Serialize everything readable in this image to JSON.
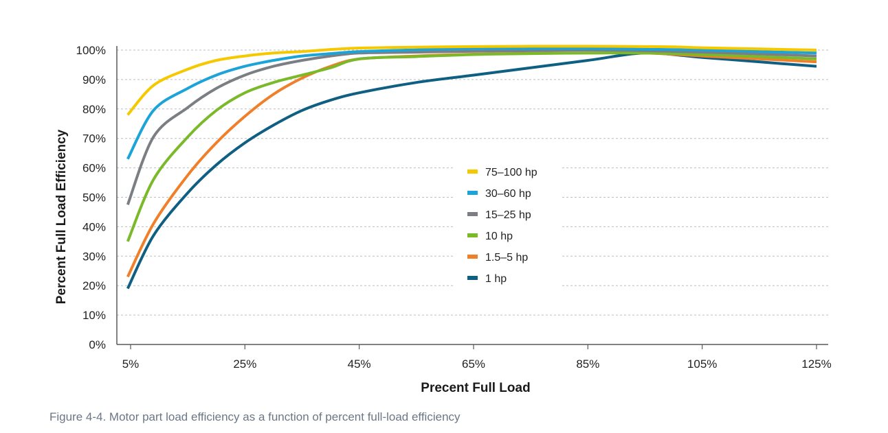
{
  "caption": "Figure 4-4. Motor part load efficiency as a function of percent full-load efficiency",
  "chart_data": {
    "type": "line",
    "xlabel": "Precent Full Load",
    "ylabel": "Percent Full Load Efficiency",
    "x_ticks": [
      5,
      25,
      45,
      65,
      85,
      105,
      125
    ],
    "x_tick_labels": [
      "5%",
      "25%",
      "45%",
      "65%",
      "85%",
      "105%",
      "125%"
    ],
    "y_ticks": [
      0,
      10,
      20,
      30,
      40,
      50,
      60,
      70,
      80,
      90,
      100
    ],
    "y_tick_labels": [
      "0%",
      "10%",
      "20%",
      "30%",
      "40%",
      "50%",
      "60%",
      "70%",
      "80%",
      "90%",
      "100%"
    ],
    "xlim": [
      4.5,
      125
    ],
    "ylim": [
      0,
      100
    ],
    "grid": true,
    "legend_position": "center-right",
    "series": [
      {
        "name": "75–100 hp",
        "color": "#f5c800",
        "points": [
          [
            4.5,
            78
          ],
          [
            9,
            88
          ],
          [
            15,
            93.5
          ],
          [
            20,
            96.5
          ],
          [
            25,
            98
          ],
          [
            30,
            99
          ],
          [
            35,
            99.5
          ],
          [
            40,
            100.2
          ],
          [
            45,
            100.7
          ],
          [
            55,
            101
          ],
          [
            65,
            101.2
          ],
          [
            75,
            101.3
          ],
          [
            85,
            101.3
          ],
          [
            95,
            101.2
          ],
          [
            100,
            101.1
          ],
          [
            105,
            100.8
          ],
          [
            115,
            100.4
          ],
          [
            125,
            100
          ]
        ]
      },
      {
        "name": "30–60 hp",
        "color": "#1ca3d8",
        "points": [
          [
            4.5,
            63
          ],
          [
            9,
            79.5
          ],
          [
            15,
            87
          ],
          [
            20,
            91.5
          ],
          [
            25,
            94.5
          ],
          [
            30,
            96.5
          ],
          [
            35,
            98
          ],
          [
            40,
            98.8
          ],
          [
            45,
            99.5
          ],
          [
            55,
            100.1
          ],
          [
            65,
            100.5
          ],
          [
            75,
            100.5
          ],
          [
            85,
            100.5
          ],
          [
            95,
            100.3
          ],
          [
            105,
            100
          ],
          [
            115,
            99.5
          ],
          [
            125,
            99
          ]
        ]
      },
      {
        "name": "15–25 hp",
        "color": "#7b7f84",
        "points": [
          [
            4.5,
            47.5
          ],
          [
            9,
            70.5
          ],
          [
            15,
            80.5
          ],
          [
            20,
            87
          ],
          [
            25,
            91.5
          ],
          [
            30,
            94.5
          ],
          [
            35,
            96.5
          ],
          [
            40,
            98
          ],
          [
            45,
            99
          ],
          [
            55,
            99.3
          ],
          [
            65,
            99.6
          ],
          [
            75,
            99.8
          ],
          [
            85,
            100
          ],
          [
            95,
            99.8
          ],
          [
            105,
            99.3
          ],
          [
            115,
            98.7
          ],
          [
            125,
            98
          ]
        ]
      },
      {
        "name": "10 hp",
        "color": "#7ab929",
        "points": [
          [
            4.5,
            35
          ],
          [
            9,
            56
          ],
          [
            15,
            70.5
          ],
          [
            20,
            79.5
          ],
          [
            25,
            85.5
          ],
          [
            30,
            89
          ],
          [
            35,
            91.5
          ],
          [
            40,
            94
          ],
          [
            45,
            97
          ],
          [
            55,
            97.8
          ],
          [
            65,
            98.5
          ],
          [
            75,
            98.8
          ],
          [
            85,
            99
          ],
          [
            95,
            99
          ],
          [
            105,
            98.5
          ],
          [
            115,
            97.8
          ],
          [
            125,
            97
          ]
        ]
      },
      {
        "name": "1.5–5 hp",
        "color": "#f07f2a",
        "points": [
          [
            4.5,
            23
          ],
          [
            9,
            41
          ],
          [
            15,
            57.5
          ],
          [
            20,
            68.5
          ],
          [
            25,
            77.5
          ],
          [
            30,
            85
          ],
          [
            35,
            90.5
          ],
          [
            40,
            94.5
          ],
          [
            45,
            97
          ],
          [
            55,
            98
          ],
          [
            65,
            98.6
          ],
          [
            75,
            98.9
          ],
          [
            85,
            99
          ],
          [
            95,
            99
          ],
          [
            105,
            98
          ],
          [
            115,
            97
          ],
          [
            125,
            96
          ]
        ]
      },
      {
        "name": "1 hp",
        "color": "#0f5f83",
        "points": [
          [
            4.5,
            19
          ],
          [
            9,
            37
          ],
          [
            15,
            51.5
          ],
          [
            20,
            61
          ],
          [
            25,
            68.5
          ],
          [
            30,
            74.5
          ],
          [
            35,
            79.5
          ],
          [
            40,
            83
          ],
          [
            45,
            85.5
          ],
          [
            55,
            89
          ],
          [
            65,
            91.5
          ],
          [
            75,
            94
          ],
          [
            85,
            96.5
          ],
          [
            95,
            99
          ],
          [
            105,
            97.5
          ],
          [
            115,
            96
          ],
          [
            125,
            94.5
          ]
        ]
      }
    ]
  }
}
